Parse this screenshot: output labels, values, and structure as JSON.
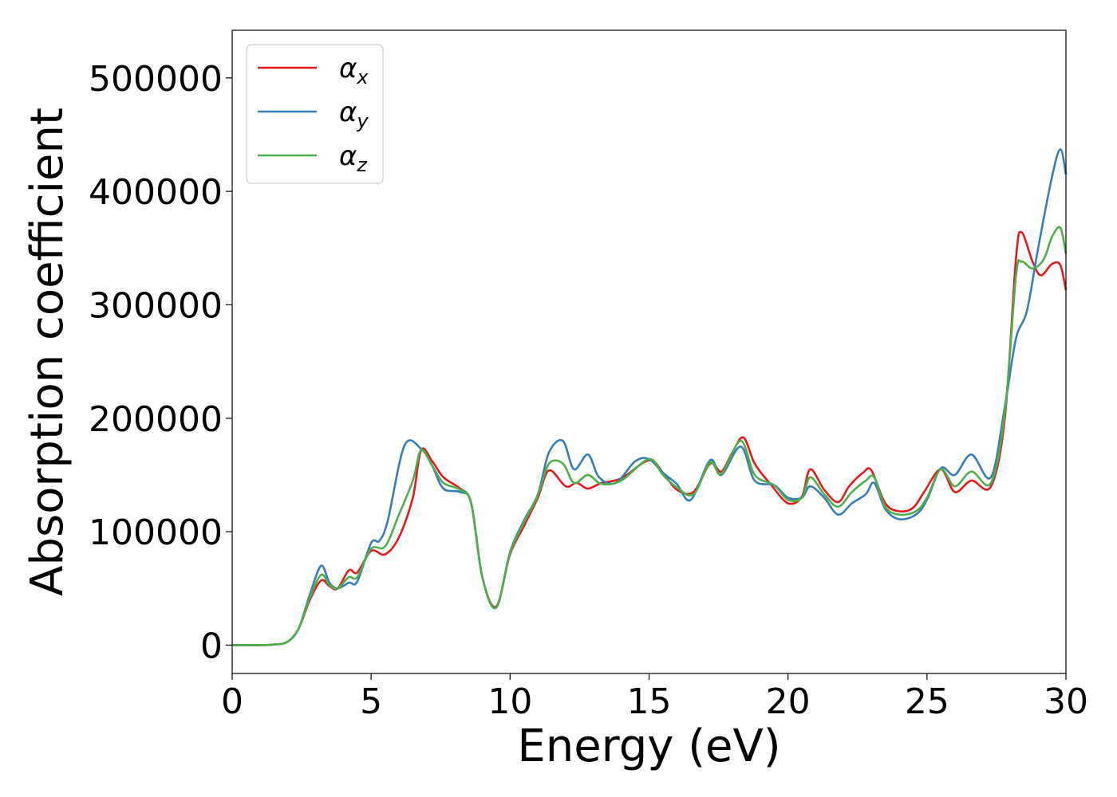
{
  "chart_data": {
    "type": "line",
    "xlabel": "Energy (eV)",
    "ylabel": "Absorption coefficient",
    "xlim": [
      0,
      30
    ],
    "ylim": [
      -25000,
      542000
    ],
    "xticks": [
      0,
      5,
      10,
      15,
      20,
      25,
      30
    ],
    "xtick_labels": [
      "0",
      "5",
      "10",
      "15",
      "20",
      "25",
      "30"
    ],
    "yticks": [
      0,
      100000,
      200000,
      300000,
      400000,
      500000
    ],
    "ytick_labels": [
      "0",
      "100000",
      "200000",
      "300000",
      "400000",
      "500000"
    ],
    "grid": false,
    "legend_position": "top-left",
    "series": [
      {
        "name": "α",
        "subscript": "x",
        "color": "#e41a1c",
        "points": [
          [
            0,
            0
          ],
          [
            1,
            0
          ],
          [
            1.5,
            500
          ],
          [
            2,
            3000
          ],
          [
            2.4,
            15000
          ],
          [
            2.8,
            40000
          ],
          [
            3.2,
            57000
          ],
          [
            3.5,
            52000
          ],
          [
            3.8,
            50000
          ],
          [
            4.2,
            66000
          ],
          [
            4.5,
            64000
          ],
          [
            5,
            83000
          ],
          [
            5.5,
            80000
          ],
          [
            6,
            95000
          ],
          [
            6.5,
            130000
          ],
          [
            6.8,
            172000
          ],
          [
            7.2,
            162000
          ],
          [
            7.6,
            148000
          ],
          [
            8.2,
            138000
          ],
          [
            8.6,
            125000
          ],
          [
            9,
            60000
          ],
          [
            9.5,
            34000
          ],
          [
            10,
            80000
          ],
          [
            10.5,
            105000
          ],
          [
            11,
            130000
          ],
          [
            11.4,
            154000
          ],
          [
            12,
            140000
          ],
          [
            12.4,
            143000
          ],
          [
            12.8,
            138000
          ],
          [
            13.3,
            143000
          ],
          [
            14,
            147000
          ],
          [
            15,
            163000
          ],
          [
            15.5,
            152000
          ],
          [
            16,
            137000
          ],
          [
            16.6,
            135000
          ],
          [
            17.2,
            160000
          ],
          [
            17.6,
            153000
          ],
          [
            18,
            170000
          ],
          [
            18.4,
            183000
          ],
          [
            18.8,
            160000
          ],
          [
            19.4,
            141000
          ],
          [
            20,
            125000
          ],
          [
            20.5,
            131000
          ],
          [
            20.8,
            155000
          ],
          [
            21.3,
            137000
          ],
          [
            21.8,
            126000
          ],
          [
            22.2,
            140000
          ],
          [
            22.7,
            152000
          ],
          [
            23,
            154000
          ],
          [
            23.5,
            125000
          ],
          [
            24,
            118000
          ],
          [
            24.5,
            121000
          ],
          [
            24.9,
            135000
          ],
          [
            25.5,
            155000
          ],
          [
            26,
            135000
          ],
          [
            26.6,
            145000
          ],
          [
            27.3,
            140000
          ],
          [
            27.8,
            200000
          ],
          [
            28.2,
            340000
          ],
          [
            28.4,
            364000
          ],
          [
            28.8,
            338000
          ],
          [
            29.1,
            326000
          ],
          [
            29.5,
            336000
          ],
          [
            29.8,
            335000
          ],
          [
            30,
            313000
          ]
        ]
      },
      {
        "name": "α",
        "subscript": "y",
        "color": "#377eb8",
        "points": [
          [
            0,
            0
          ],
          [
            1,
            0
          ],
          [
            1.5,
            500
          ],
          [
            2,
            3000
          ],
          [
            2.4,
            15000
          ],
          [
            2.8,
            45000
          ],
          [
            3.2,
            70000
          ],
          [
            3.5,
            55000
          ],
          [
            3.8,
            50000
          ],
          [
            4.2,
            55000
          ],
          [
            4.5,
            56000
          ],
          [
            5,
            90000
          ],
          [
            5.3,
            92000
          ],
          [
            5.6,
            110000
          ],
          [
            6.2,
            176000
          ],
          [
            6.8,
            173000
          ],
          [
            7.2,
            158000
          ],
          [
            7.6,
            138000
          ],
          [
            8.2,
            135000
          ],
          [
            8.6,
            125000
          ],
          [
            9,
            60000
          ],
          [
            9.5,
            33000
          ],
          [
            10,
            82000
          ],
          [
            10.5,
            110000
          ],
          [
            11,
            133000
          ],
          [
            11.4,
            170000
          ],
          [
            11.9,
            180000
          ],
          [
            12.3,
            155000
          ],
          [
            12.8,
            168000
          ],
          [
            13.2,
            148000
          ],
          [
            13.8,
            143000
          ],
          [
            14.5,
            162000
          ],
          [
            15,
            164000
          ],
          [
            15.5,
            152000
          ],
          [
            16,
            142000
          ],
          [
            16.5,
            128000
          ],
          [
            17.2,
            163000
          ],
          [
            17.6,
            150000
          ],
          [
            18.3,
            175000
          ],
          [
            18.8,
            145000
          ],
          [
            19.5,
            141000
          ],
          [
            20,
            130000
          ],
          [
            20.5,
            130000
          ],
          [
            20.8,
            140000
          ],
          [
            21.3,
            130000
          ],
          [
            21.8,
            115000
          ],
          [
            22.3,
            125000
          ],
          [
            22.8,
            133000
          ],
          [
            23.1,
            143000
          ],
          [
            23.5,
            120000
          ],
          [
            24,
            111000
          ],
          [
            24.6,
            115000
          ],
          [
            25,
            128000
          ],
          [
            25.5,
            156000
          ],
          [
            26,
            150000
          ],
          [
            26.6,
            168000
          ],
          [
            27.3,
            148000
          ],
          [
            27.8,
            210000
          ],
          [
            28.2,
            270000
          ],
          [
            28.6,
            295000
          ],
          [
            29,
            350000
          ],
          [
            29.5,
            413000
          ],
          [
            29.8,
            437000
          ],
          [
            30,
            415000
          ]
        ]
      },
      {
        "name": "α",
        "subscript": "z",
        "color": "#4daf4a",
        "points": [
          [
            0,
            0
          ],
          [
            1,
            0
          ],
          [
            1.5,
            500
          ],
          [
            2,
            3000
          ],
          [
            2.4,
            15000
          ],
          [
            2.8,
            42000
          ],
          [
            3.2,
            62000
          ],
          [
            3.5,
            53000
          ],
          [
            3.8,
            50000
          ],
          [
            4.2,
            60000
          ],
          [
            4.5,
            60000
          ],
          [
            5,
            85000
          ],
          [
            5.5,
            87000
          ],
          [
            6,
            115000
          ],
          [
            6.5,
            145000
          ],
          [
            6.8,
            172000
          ],
          [
            7.2,
            158000
          ],
          [
            7.6,
            143000
          ],
          [
            8.2,
            137000
          ],
          [
            8.6,
            125000
          ],
          [
            9,
            60000
          ],
          [
            9.5,
            33000
          ],
          [
            10,
            81000
          ],
          [
            10.5,
            108000
          ],
          [
            11,
            132000
          ],
          [
            11.4,
            160000
          ],
          [
            11.9,
            160000
          ],
          [
            12.3,
            143000
          ],
          [
            12.8,
            150000
          ],
          [
            13.3,
            142000
          ],
          [
            14,
            145000
          ],
          [
            15,
            164000
          ],
          [
            15.5,
            150000
          ],
          [
            16,
            139000
          ],
          [
            16.6,
            133000
          ],
          [
            17.2,
            161000
          ],
          [
            17.6,
            151000
          ],
          [
            18.3,
            180000
          ],
          [
            18.8,
            150000
          ],
          [
            19.5,
            141000
          ],
          [
            20,
            128000
          ],
          [
            20.5,
            130000
          ],
          [
            20.8,
            148000
          ],
          [
            21.3,
            133000
          ],
          [
            21.8,
            122000
          ],
          [
            22.3,
            135000
          ],
          [
            22.8,
            145000
          ],
          [
            23.1,
            148000
          ],
          [
            23.5,
            122000
          ],
          [
            24,
            115000
          ],
          [
            24.6,
            118000
          ],
          [
            25,
            130000
          ],
          [
            25.5,
            155000
          ],
          [
            26,
            140000
          ],
          [
            26.6,
            153000
          ],
          [
            27.3,
            143000
          ],
          [
            27.8,
            205000
          ],
          [
            28.2,
            325000
          ],
          [
            28.4,
            338000
          ],
          [
            28.8,
            332000
          ],
          [
            29.2,
            340000
          ],
          [
            29.5,
            360000
          ],
          [
            29.8,
            368000
          ],
          [
            30,
            345000
          ]
        ]
      }
    ]
  }
}
